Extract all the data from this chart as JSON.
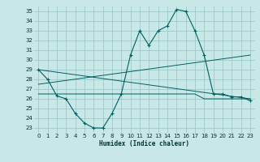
{
  "title": "",
  "xlabel": "Humidex (Indice chaleur)",
  "background_color": "#c8e8e8",
  "grid_color": "#a0c8c8",
  "line_color": "#006060",
  "xlim": [
    -0.5,
    23.5
  ],
  "ylim": [
    22.5,
    35.5
  ],
  "yticks": [
    23,
    24,
    25,
    26,
    27,
    28,
    29,
    30,
    31,
    32,
    33,
    34,
    35
  ],
  "xticks": [
    0,
    1,
    2,
    3,
    4,
    5,
    6,
    7,
    8,
    9,
    10,
    11,
    12,
    13,
    14,
    15,
    16,
    17,
    18,
    19,
    20,
    21,
    22,
    23
  ],
  "series1_x": [
    0,
    1,
    2,
    3,
    4,
    5,
    6,
    7,
    8,
    9,
    10,
    11,
    12,
    13,
    14,
    15,
    16,
    17,
    18,
    19,
    20,
    21,
    22,
    23
  ],
  "series1_y": [
    29,
    28,
    26.3,
    26,
    24.5,
    23.5,
    23,
    23,
    24.5,
    26.5,
    30.5,
    33,
    31.5,
    33,
    33.5,
    35.2,
    35,
    33,
    30.5,
    26.5,
    26.5,
    26.2,
    26.2,
    25.8
  ],
  "series2_x": [
    0,
    2,
    3,
    7,
    8,
    9,
    10,
    11,
    12,
    13,
    14,
    15,
    16,
    17,
    18,
    19,
    20,
    21,
    22,
    23
  ],
  "series2_y": [
    26.5,
    26.5,
    26.5,
    26.5,
    26.5,
    26.5,
    26.5,
    26.5,
    26.5,
    26.5,
    26.5,
    26.5,
    26.5,
    26.5,
    26,
    26,
    26,
    26,
    26,
    26
  ],
  "series3_x": [
    0,
    23
  ],
  "series3_y": [
    27.5,
    30.5
  ],
  "series4_x": [
    0,
    23
  ],
  "series4_y": [
    29,
    26
  ]
}
